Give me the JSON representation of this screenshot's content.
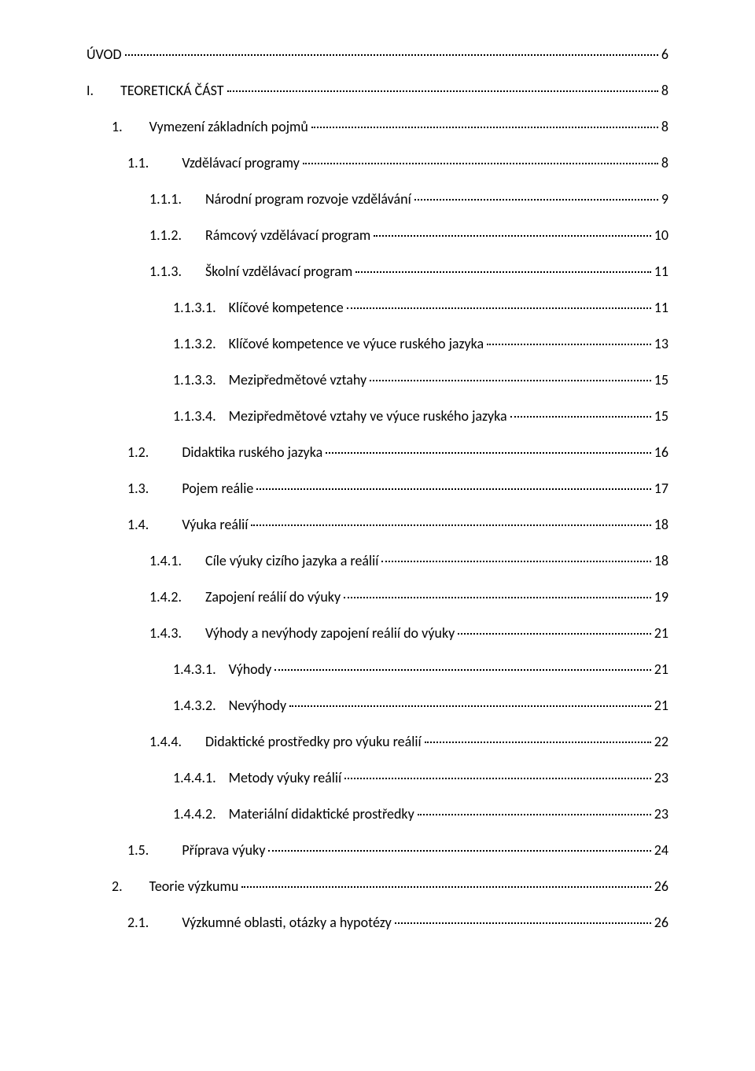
{
  "toc": [
    {
      "indent": 0,
      "num": "",
      "gap": 0,
      "label": "ÚVOD",
      "page": "6",
      "link": true
    },
    {
      "indent": 0,
      "num": "I.",
      "gap": 34,
      "label": "TEORETICKÁ ČÁST",
      "page": "8",
      "link": true
    },
    {
      "indent": 1,
      "num": "1.",
      "gap": 34,
      "label": "Vymezení základních pojmů",
      "page": "8",
      "link": true
    },
    {
      "indent": 2,
      "num": "1.1.",
      "gap": 42,
      "label": "Vzdělávací programy",
      "page": "8",
      "link": true
    },
    {
      "indent": 3,
      "num": "1.1.1.",
      "gap": 30,
      "label": "Národní program rozvoje vzdělávání",
      "page": "9",
      "link": true
    },
    {
      "indent": 3,
      "num": "1.1.2.",
      "gap": 30,
      "label": "Rámcový vzdělávací program",
      "page": "10",
      "link": true
    },
    {
      "indent": 3,
      "num": "1.1.3.",
      "gap": 30,
      "label": "Školní vzdělávací program",
      "page": "11",
      "link": true
    },
    {
      "indent": 4,
      "num": "1.1.3.1.",
      "gap": 16,
      "label": "Klíčové kompetence",
      "page": "11",
      "link": true
    },
    {
      "indent": 4,
      "num": "1.1.3.2.",
      "gap": 16,
      "label": "Klíčové kompetence ve výuce ruského jazyka",
      "page": "13",
      "link": true
    },
    {
      "indent": 4,
      "num": "1.1.3.3.",
      "gap": 16,
      "label": "Mezipředmětové vztahy",
      "page": "15",
      "link": true
    },
    {
      "indent": 4,
      "num": "1.1.3.4.",
      "gap": 16,
      "label": "Mezipředmětové vztahy ve výuce ruského jazyka",
      "page": "15",
      "link": true
    },
    {
      "indent": 2,
      "num": "1.2.",
      "gap": 42,
      "label": "Didaktika ruského jazyka",
      "page": "16",
      "link": true
    },
    {
      "indent": 2,
      "num": "1.3.",
      "gap": 42,
      "label": "Pojem reálie",
      "page": "17",
      "link": true
    },
    {
      "indent": 2,
      "num": "1.4.",
      "gap": 42,
      "label": "Výuka reálií",
      "page": "18",
      "link": true
    },
    {
      "indent": 3,
      "num": "1.4.1.",
      "gap": 30,
      "label": "Cíle výuky cizího jazyka a reálií",
      "page": "18",
      "link": true
    },
    {
      "indent": 3,
      "num": "1.4.2.",
      "gap": 30,
      "label": "Zapojení reálií do výuky",
      "page": "19",
      "link": true
    },
    {
      "indent": 3,
      "num": "1.4.3.",
      "gap": 30,
      "label": "Výhody a nevýhody zapojení reálií do výuky",
      "page": "21",
      "link": true
    },
    {
      "indent": 4,
      "num": "1.4.3.1.",
      "gap": 16,
      "label": "Výhody",
      "page": "21",
      "link": true
    },
    {
      "indent": 4,
      "num": "1.4.3.2.",
      "gap": 16,
      "label": "Nevýhody",
      "page": "21",
      "link": true
    },
    {
      "indent": 3,
      "num": "1.4.4.",
      "gap": 30,
      "label": "Didaktické prostředky pro výuku reálií",
      "page": "22",
      "link": true
    },
    {
      "indent": 4,
      "num": "1.4.4.1.",
      "gap": 16,
      "label": "Metody výuky reálií",
      "page": "23",
      "link": true
    },
    {
      "indent": 4,
      "num": "1.4.4.2.",
      "gap": 16,
      "label": "Materiální didaktické prostředky",
      "page": "23",
      "link": true
    },
    {
      "indent": 2,
      "num": "1.5.",
      "gap": 42,
      "label": "Příprava výuky",
      "page": "24",
      "link": true
    },
    {
      "indent": 1,
      "num": "2.",
      "gap": 34,
      "label": "Teorie výzkumu",
      "page": "26",
      "link": true
    },
    {
      "indent": 2,
      "num": "2.1.",
      "gap": 42,
      "label": "Výzkumné oblasti, otázky a hypotézy",
      "page": "26",
      "link": true
    }
  ],
  "style": {
    "font_family": "Calibri",
    "font_size_pt": 13,
    "text_color": "#000000",
    "background_color": "#ffffff",
    "dot_leader_color": "#000000"
  }
}
